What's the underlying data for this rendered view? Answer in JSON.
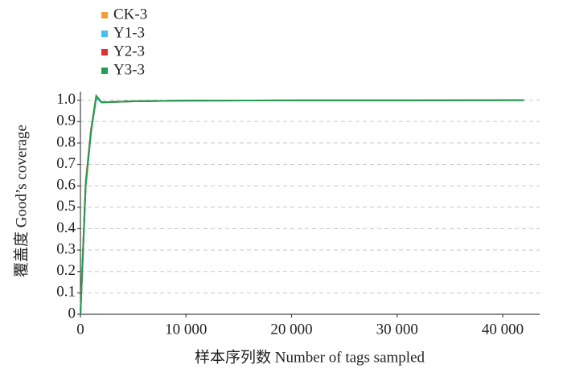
{
  "chart_data": {
    "type": "line",
    "x_label": "样本序列数  Number of tags sampled",
    "y_label": "覆盖度  Good’s coverage",
    "x": [
      0,
      500,
      1000,
      1500,
      2000,
      5000,
      10000,
      20000,
      30000,
      42000
    ],
    "series": [
      {
        "name": "CK-3",
        "color": "#f0a030",
        "values": [
          0,
          0.62,
          0.86,
          1.02,
          0.99,
          0.995,
          0.998,
          0.999,
          0.999,
          1.0
        ]
      },
      {
        "name": "Y1-3",
        "color": "#40c0f0",
        "values": [
          0,
          0.6,
          0.85,
          1.01,
          0.99,
          0.995,
          0.998,
          0.999,
          0.999,
          1.0
        ]
      },
      {
        "name": "Y2-3",
        "color": "#e03030",
        "values": [
          0,
          0.61,
          0.86,
          1.02,
          0.99,
          0.995,
          0.998,
          0.999,
          0.999,
          1.0
        ]
      },
      {
        "name": "Y3-3",
        "color": "#20a050",
        "values": [
          0,
          0.6,
          0.85,
          1.02,
          0.99,
          0.995,
          0.998,
          0.999,
          0.999,
          1.0
        ]
      }
    ],
    "xlim": [
      0,
      43500
    ],
    "xticks": [
      0,
      {
        "value": 10000,
        "label": "10 000"
      },
      {
        "value": 20000,
        "label": "20 000"
      },
      {
        "value": 30000,
        "label": "30 000"
      },
      {
        "value": 40000,
        "label": "40 000"
      }
    ],
    "ylim": [
      0,
      1.04
    ],
    "yticks": [
      0,
      0.1,
      0.2,
      0.3,
      0.4,
      0.5,
      0.6,
      0.7,
      0.8,
      0.9,
      {
        "value": 1,
        "label": "1.0"
      }
    ],
    "grid": true,
    "legend": "top-left"
  }
}
